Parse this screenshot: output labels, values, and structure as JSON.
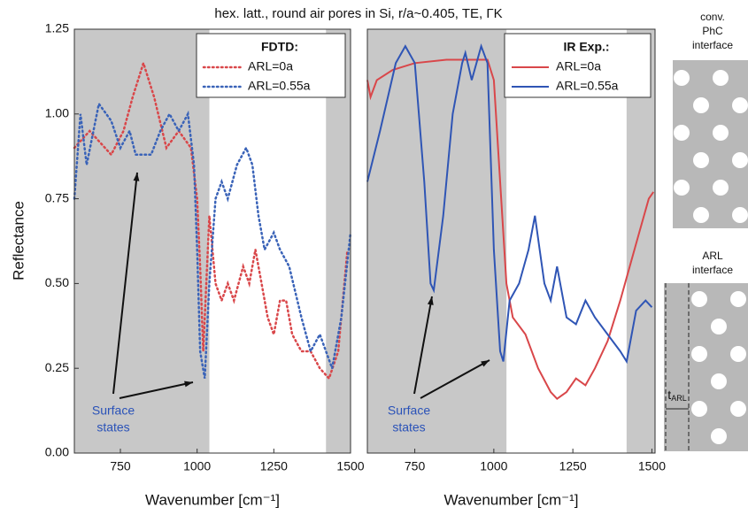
{
  "figure_title": "hex. latt., round air pores in Si, r/a~0.405, TE, ΓK",
  "ylabel": "Reflectance",
  "chart_data": [
    {
      "type": "line",
      "line_style": "dotted",
      "legend_title": "FDTD:",
      "xlabel": "Wavenumber [cm⁻¹]",
      "annotation": [
        "Surface",
        "states"
      ],
      "xlim": [
        600,
        1500
      ],
      "xticks": [
        750,
        1000,
        1250,
        1500
      ],
      "ylim": [
        0,
        1.25
      ],
      "yticks": [
        {
          "value": 0,
          "label": "0.00"
        },
        0.25,
        {
          "value": 0.5,
          "label": "0.50"
        },
        0.75,
        {
          "value": 1,
          "label": "1.00"
        },
        1.25
      ],
      "shaded": [
        [
          600,
          1040
        ],
        [
          1420,
          1500
        ]
      ],
      "series": [
        {
          "name": "ARL=0a",
          "color": "#d9474a",
          "x": [
            600,
            650,
            720,
            760,
            790,
            825,
            860,
            900,
            940,
            980,
            1000,
            1010,
            1020,
            1040,
            1060,
            1080,
            1100,
            1120,
            1150,
            1170,
            1190,
            1210,
            1230,
            1250,
            1270,
            1290,
            1310,
            1340,
            1370,
            1400,
            1430,
            1460,
            1490
          ],
          "values": [
            0.9,
            0.95,
            0.88,
            0.95,
            1.05,
            1.15,
            1.05,
            0.9,
            0.95,
            0.9,
            0.75,
            0.55,
            0.3,
            0.7,
            0.5,
            0.45,
            0.5,
            0.45,
            0.55,
            0.5,
            0.6,
            0.5,
            0.4,
            0.35,
            0.45,
            0.45,
            0.35,
            0.3,
            0.3,
            0.25,
            0.22,
            0.3,
            0.6
          ]
        },
        {
          "name": "ARL=0.55a",
          "color": "#3a63b8",
          "x": [
            600,
            620,
            640,
            680,
            720,
            750,
            780,
            800,
            850,
            880,
            910,
            940,
            970,
            990,
            1000,
            1010,
            1025,
            1040,
            1060,
            1080,
            1100,
            1130,
            1160,
            1180,
            1200,
            1220,
            1250,
            1270,
            1300,
            1340,
            1370,
            1400,
            1440,
            1470,
            1500
          ],
          "values": [
            0.75,
            1.0,
            0.85,
            1.03,
            0.98,
            0.9,
            0.95,
            0.88,
            0.88,
            0.95,
            1.0,
            0.95,
            1.0,
            0.85,
            0.6,
            0.3,
            0.22,
            0.5,
            0.75,
            0.8,
            0.75,
            0.85,
            0.9,
            0.85,
            0.7,
            0.6,
            0.65,
            0.6,
            0.55,
            0.4,
            0.3,
            0.35,
            0.25,
            0.4,
            0.65
          ]
        }
      ]
    },
    {
      "type": "line",
      "line_style": "solid",
      "legend_title": "IR Exp.:",
      "xlabel": "Wavenumber [cm⁻¹]",
      "annotation": [
        "Surface",
        "states"
      ],
      "xlim": [
        600,
        1510
      ],
      "xticks": [
        750,
        1000,
        1250,
        1500
      ],
      "ylim": [
        0,
        1.25
      ],
      "shaded": [
        [
          600,
          1040
        ],
        [
          1420,
          1510
        ]
      ],
      "series": [
        {
          "name": "ARL=0a",
          "color": "#d9474a",
          "x": [
            600,
            610,
            630,
            680,
            750,
            850,
            950,
            980,
            1000,
            1020,
            1040,
            1060,
            1100,
            1140,
            1180,
            1200,
            1230,
            1260,
            1290,
            1320,
            1360,
            1400,
            1430,
            1460,
            1490,
            1505
          ],
          "values": [
            1.1,
            1.05,
            1.1,
            1.13,
            1.15,
            1.16,
            1.16,
            1.16,
            1.1,
            0.8,
            0.5,
            0.4,
            0.35,
            0.25,
            0.18,
            0.16,
            0.18,
            0.22,
            0.2,
            0.25,
            0.33,
            0.45,
            0.55,
            0.65,
            0.75,
            0.77
          ]
        },
        {
          "name": "ARL=0.55a",
          "color": "#2f55b5",
          "x": [
            600,
            640,
            690,
            720,
            750,
            780,
            800,
            810,
            840,
            870,
            900,
            910,
            930,
            960,
            980,
            1000,
            1020,
            1030,
            1050,
            1080,
            1110,
            1130,
            1160,
            1180,
            1200,
            1230,
            1260,
            1290,
            1320,
            1360,
            1400,
            1420,
            1450,
            1480,
            1500
          ],
          "values": [
            0.8,
            0.95,
            1.15,
            1.2,
            1.15,
            0.8,
            0.5,
            0.48,
            0.7,
            1.0,
            1.15,
            1.18,
            1.1,
            1.2,
            1.15,
            0.6,
            0.3,
            0.27,
            0.45,
            0.5,
            0.6,
            0.7,
            0.5,
            0.45,
            0.55,
            0.4,
            0.38,
            0.45,
            0.4,
            0.35,
            0.3,
            0.27,
            0.42,
            0.45,
            0.43
          ]
        }
      ]
    }
  ],
  "schematic": {
    "top_label": [
      "conv.",
      "PhC",
      "interface"
    ],
    "bottom_label": [
      "ARL",
      "interface"
    ],
    "dimension_label": "t",
    "dimension_subscript": "ARL"
  }
}
